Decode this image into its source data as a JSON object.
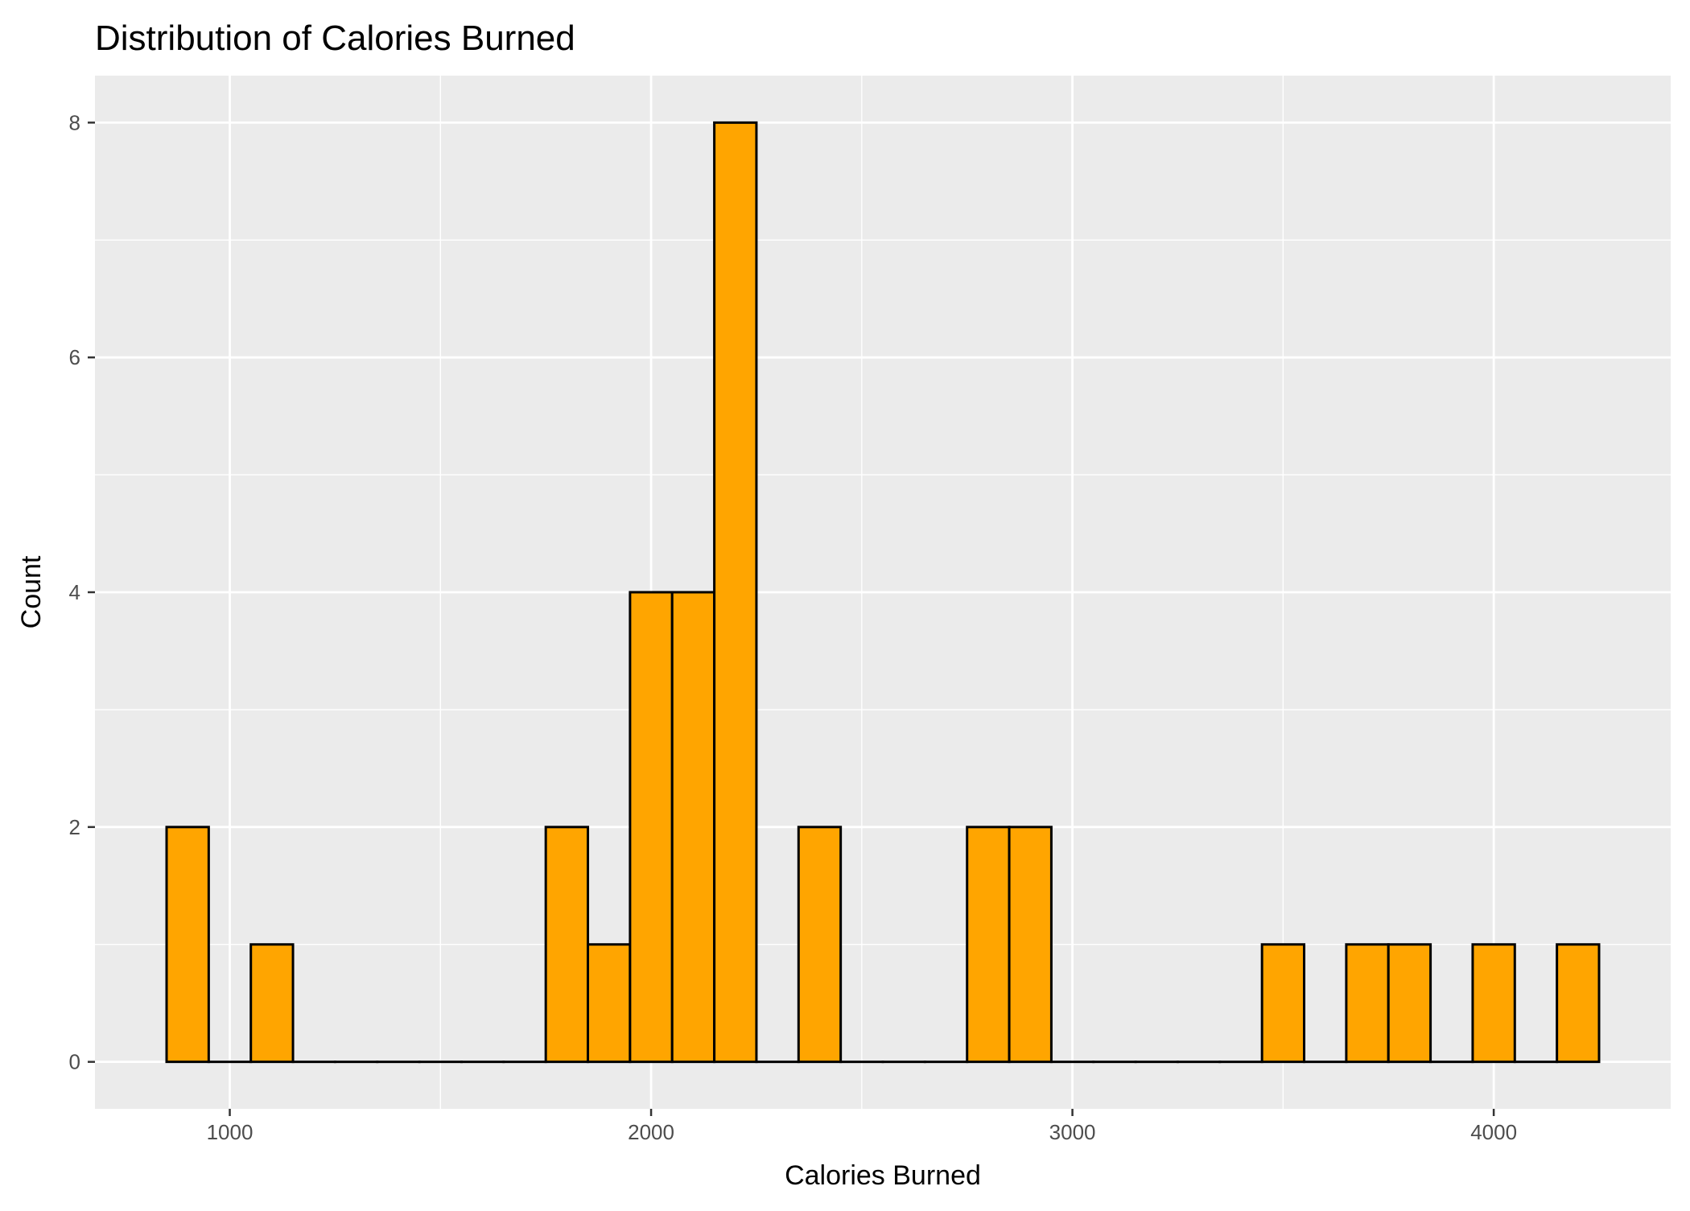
{
  "chart_data": {
    "type": "bar",
    "title": "Distribution of Calories Burned",
    "xlabel": "Calories Burned",
    "ylabel": "Count",
    "bin_width": 100,
    "bins": [
      {
        "x0": 850,
        "x1": 950,
        "count": 2
      },
      {
        "x0": 950,
        "x1": 1050,
        "count": 0
      },
      {
        "x0": 1050,
        "x1": 1150,
        "count": 1
      },
      {
        "x0": 1150,
        "x1": 1250,
        "count": 0
      },
      {
        "x0": 1250,
        "x1": 1350,
        "count": 0
      },
      {
        "x0": 1350,
        "x1": 1450,
        "count": 0
      },
      {
        "x0": 1450,
        "x1": 1550,
        "count": 0
      },
      {
        "x0": 1550,
        "x1": 1650,
        "count": 0
      },
      {
        "x0": 1650,
        "x1": 1750,
        "count": 0
      },
      {
        "x0": 1750,
        "x1": 1850,
        "count": 2
      },
      {
        "x0": 1850,
        "x1": 1950,
        "count": 1
      },
      {
        "x0": 1950,
        "x1": 2050,
        "count": 4
      },
      {
        "x0": 2050,
        "x1": 2150,
        "count": 4
      },
      {
        "x0": 2150,
        "x1": 2250,
        "count": 8
      },
      {
        "x0": 2250,
        "x1": 2350,
        "count": 0
      },
      {
        "x0": 2350,
        "x1": 2450,
        "count": 2
      },
      {
        "x0": 2450,
        "x1": 2550,
        "count": 0
      },
      {
        "x0": 2550,
        "x1": 2650,
        "count": 0
      },
      {
        "x0": 2650,
        "x1": 2750,
        "count": 0
      },
      {
        "x0": 2750,
        "x1": 2850,
        "count": 2
      },
      {
        "x0": 2850,
        "x1": 2950,
        "count": 2
      },
      {
        "x0": 2950,
        "x1": 3050,
        "count": 0
      },
      {
        "x0": 3050,
        "x1": 3150,
        "count": 0
      },
      {
        "x0": 3150,
        "x1": 3250,
        "count": 0
      },
      {
        "x0": 3250,
        "x1": 3350,
        "count": 0
      },
      {
        "x0": 3350,
        "x1": 3450,
        "count": 0
      },
      {
        "x0": 3450,
        "x1": 3550,
        "count": 1
      },
      {
        "x0": 3550,
        "x1": 3650,
        "count": 0
      },
      {
        "x0": 3650,
        "x1": 3750,
        "count": 1
      },
      {
        "x0": 3750,
        "x1": 3850,
        "count": 1
      },
      {
        "x0": 3850,
        "x1": 3950,
        "count": 0
      },
      {
        "x0": 3950,
        "x1": 4050,
        "count": 1
      },
      {
        "x0": 4050,
        "x1": 4150,
        "count": 0
      },
      {
        "x0": 4150,
        "x1": 4250,
        "count": 1
      }
    ],
    "xlim": [
      680,
      4420
    ],
    "ylim": [
      -0.4,
      8.4
    ],
    "x_ticks": [
      1000,
      2000,
      3000,
      4000
    ],
    "x_minor_ticks": [
      1500,
      2500,
      3500
    ],
    "y_ticks": [
      0,
      2,
      4,
      6,
      8
    ],
    "y_minor_ticks": [
      1,
      3,
      5,
      7
    ],
    "grid": true,
    "colors": {
      "bar_fill": "#FFA500",
      "bar_stroke": "#000000",
      "panel_background": "#EBEBEB",
      "grid_line": "#FFFFFF",
      "tick_label": "#4D4D4D",
      "tick_mark": "#333333"
    }
  }
}
